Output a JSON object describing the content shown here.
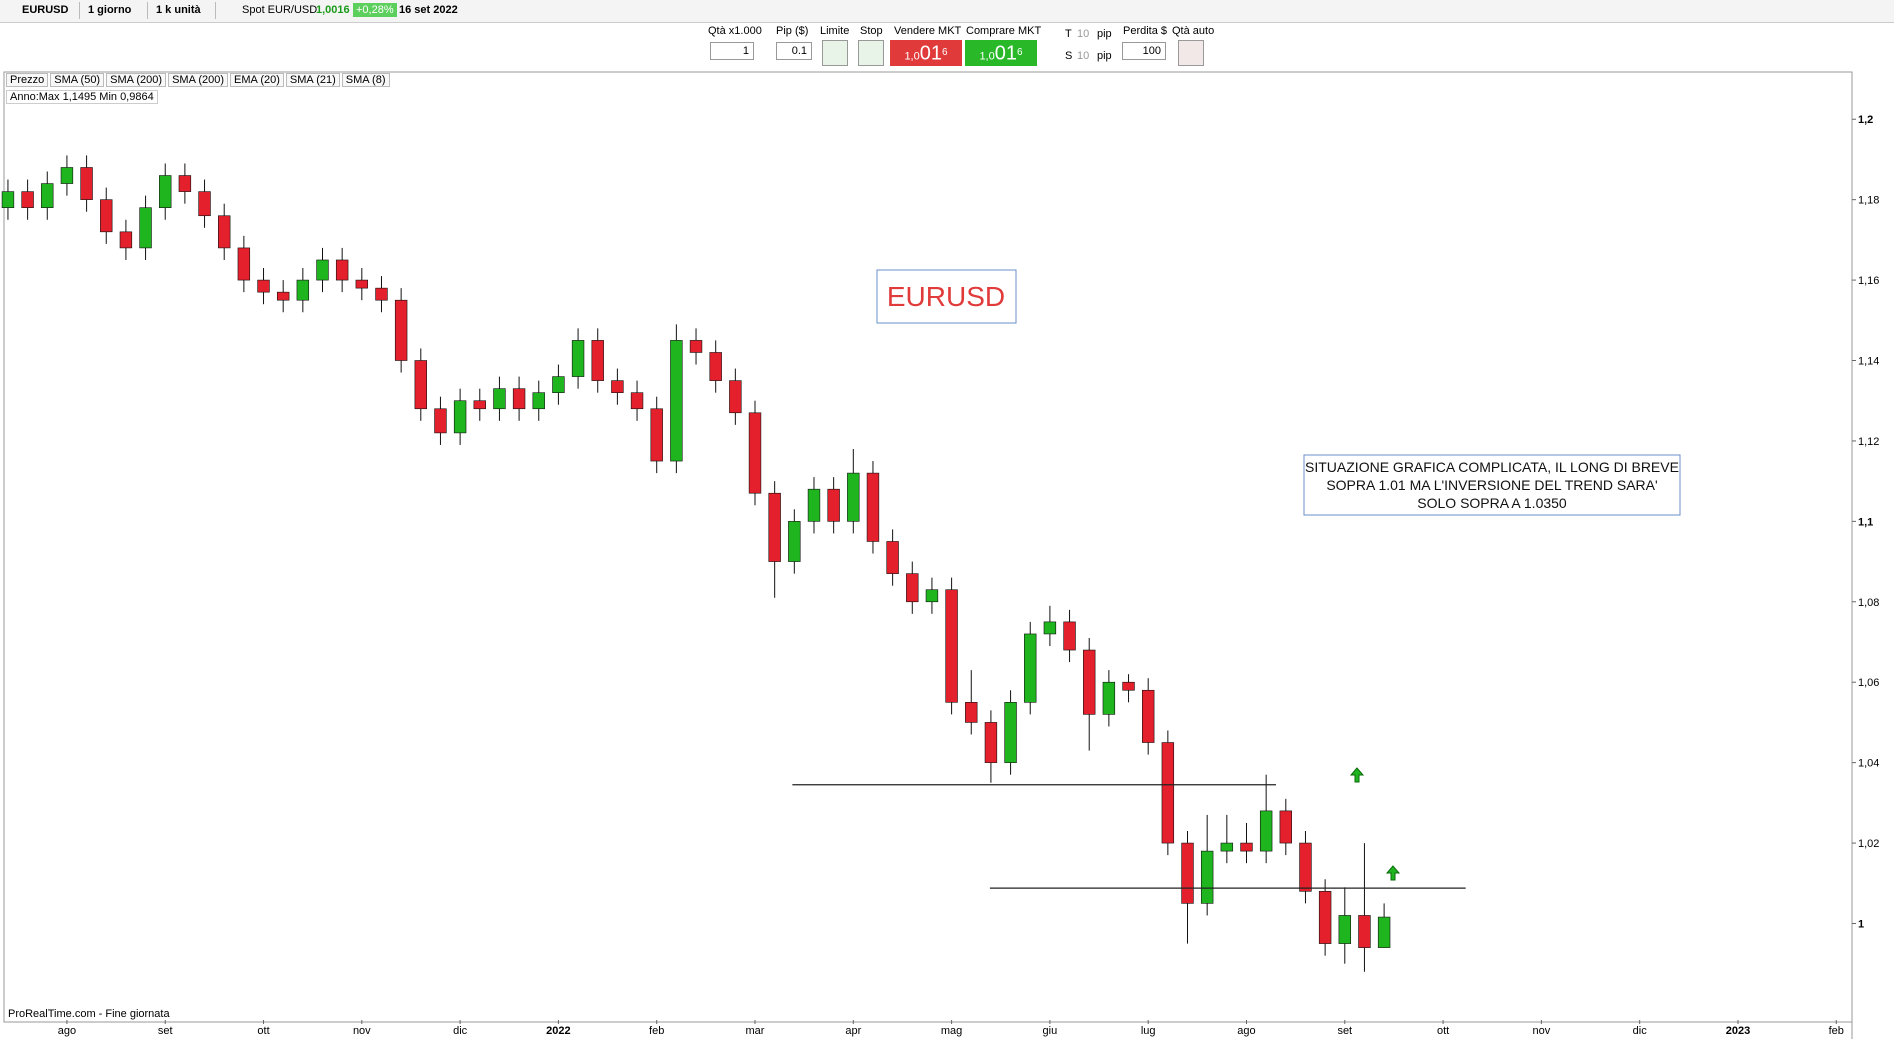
{
  "toolbar": {
    "symbol": "EURUSD",
    "period": "1 giorno",
    "units": "1 k unità",
    "instrument": "Spot EUR/USD",
    "last": "1,0016",
    "change": "+0,28%",
    "date": "16 set 2022"
  },
  "order_panel": {
    "qty_label": "Qtà x1.000",
    "qty": "1",
    "pip_label": "Pip ($)",
    "pip": "0.1",
    "limit_label": "Limite",
    "stop_label": "Stop",
    "sell_label": "Vendere MKT",
    "sell_price": {
      "small": "1,0",
      "big": "01",
      "sup": "6"
    },
    "buy_label": "Comprare MKT",
    "buy_price": {
      "small": "1,0",
      "big": "01",
      "sup": "6"
    },
    "t_label": "T",
    "t_value": "10",
    "t_unit": "pip",
    "s_label": "S",
    "s_value": "10",
    "s_unit": "pip",
    "loss_label": "Perdita $",
    "loss": "100",
    "auto_label": "Qtà auto"
  },
  "indicators": [
    "Prezzo",
    "SMA (50)",
    "SMA (200)",
    "SMA (200)",
    "EMA (20)",
    "SMA (21)",
    "SMA (8)"
  ],
  "range_info": "Anno:Max 1,1495 Min 0,9864",
  "footer": "ProRealTime.com - Fine giornata",
  "chart_data": {
    "type": "candlestick",
    "up_color": "#1fb51f",
    "down_color": "#e3202b",
    "xlim": [
      -0.63,
      18.16
    ],
    "ylim": [
      0.976,
      1.211
    ],
    "xticks": [
      {
        "value": 0,
        "label": "ago"
      },
      {
        "value": 1,
        "label": "set"
      },
      {
        "value": 2,
        "label": "ott"
      },
      {
        "value": 3,
        "label": "nov"
      },
      {
        "value": 4,
        "label": "dic"
      },
      {
        "value": 5,
        "label": "2022"
      },
      {
        "value": 6,
        "label": "feb"
      },
      {
        "value": 7,
        "label": "mar"
      },
      {
        "value": 8,
        "label": "apr"
      },
      {
        "value": 9,
        "label": "mag"
      },
      {
        "value": 10,
        "label": "giu"
      },
      {
        "value": 11,
        "label": "lug"
      },
      {
        "value": 12,
        "label": "ago"
      },
      {
        "value": 13,
        "label": "set"
      },
      {
        "value": 14,
        "label": "ott"
      },
      {
        "value": 15,
        "label": "nov"
      },
      {
        "value": 16,
        "label": "dic"
      },
      {
        "value": 17,
        "label": "2023"
      },
      {
        "value": 18,
        "label": "feb"
      }
    ],
    "yticks": [
      1,
      {
        "value": 1.02,
        "label": "1,02"
      },
      {
        "value": 1.04,
        "label": "1,04"
      },
      {
        "value": 1.06,
        "label": "1,06"
      },
      {
        "value": 1.08,
        "label": "1,08"
      },
      {
        "value": 1.1,
        "label": "1,1"
      },
      {
        "value": 1.12,
        "label": "1,12"
      },
      {
        "value": 1.14,
        "label": "1,14"
      },
      {
        "value": 1.16,
        "label": "1,16"
      },
      {
        "value": 1.18,
        "label": "1,18"
      },
      {
        "value": 1.2,
        "label": "1,2"
      }
    ],
    "x": [
      -0.6,
      -0.4,
      -0.2,
      0,
      0.2,
      0.4,
      0.6,
      0.8,
      1,
      1.2,
      1.4,
      1.6,
      1.8,
      2,
      2.2,
      2.4,
      2.6,
      2.8,
      3,
      3.2,
      3.4,
      3.6,
      3.8,
      4,
      4.2,
      4.4,
      4.6,
      4.8,
      5,
      5.2,
      5.4,
      5.6,
      5.8,
      6,
      6.2,
      6.4,
      6.6,
      6.8,
      7,
      7.2,
      7.4,
      7.6,
      7.8,
      8,
      8.2,
      8.4,
      8.6,
      8.8,
      9,
      9.2,
      9.4,
      9.6,
      9.8,
      10,
      10.2,
      10.4,
      10.6,
      10.8,
      11,
      11.2,
      11.4,
      11.6,
      11.8,
      12,
      12.2,
      12.4,
      12.6,
      12.8,
      13,
      13.2,
      13.4
    ],
    "open": [
      1.178,
      1.182,
      1.178,
      1.184,
      1.188,
      1.18,
      1.172,
      1.168,
      1.178,
      1.186,
      1.182,
      1.176,
      1.168,
      1.16,
      1.157,
      1.155,
      1.16,
      1.165,
      1.16,
      1.158,
      1.155,
      1.14,
      1.128,
      1.122,
      1.13,
      1.128,
      1.133,
      1.128,
      1.132,
      1.136,
      1.145,
      1.135,
      1.132,
      1.128,
      1.115,
      1.145,
      1.142,
      1.135,
      1.127,
      1.107,
      1.09,
      1.1,
      1.108,
      1.1,
      1.112,
      1.095,
      1.087,
      1.08,
      1.083,
      1.055,
      1.05,
      1.04,
      1.055,
      1.072,
      1.075,
      1.068,
      1.052,
      1.06,
      1.058,
      1.045,
      1.02,
      1.005,
      1.018,
      1.02,
      1.018,
      1.028,
      1.02,
      1.008,
      0.995,
      1.002,
      0.994
    ],
    "high": [
      1.185,
      1.185,
      1.187,
      1.191,
      1.191,
      1.183,
      1.175,
      1.181,
      1.189,
      1.189,
      1.185,
      1.179,
      1.171,
      1.163,
      1.16,
      1.163,
      1.168,
      1.168,
      1.163,
      1.161,
      1.158,
      1.143,
      1.131,
      1.133,
      1.133,
      1.136,
      1.136,
      1.135,
      1.139,
      1.148,
      1.148,
      1.138,
      1.135,
      1.131,
      1.149,
      1.148,
      1.145,
      1.138,
      1.13,
      1.11,
      1.103,
      1.111,
      1.111,
      1.118,
      1.115,
      1.098,
      1.09,
      1.086,
      1.086,
      1.063,
      1.053,
      1.058,
      1.075,
      1.079,
      1.078,
      1.071,
      1.063,
      1.062,
      1.061,
      1.048,
      1.023,
      1.027,
      1.027,
      1.025,
      1.037,
      1.031,
      1.023,
      1.011,
      1.009,
      1.02,
      1.005
    ],
    "low": [
      1.175,
      1.175,
      1.175,
      1.181,
      1.177,
      1.169,
      1.165,
      1.165,
      1.175,
      1.179,
      1.173,
      1.165,
      1.157,
      1.154,
      1.152,
      1.152,
      1.157,
      1.157,
      1.155,
      1.152,
      1.137,
      1.125,
      1.119,
      1.119,
      1.125,
      1.125,
      1.125,
      1.125,
      1.129,
      1.133,
      1.132,
      1.129,
      1.125,
      1.112,
      1.112,
      1.139,
      1.132,
      1.124,
      1.104,
      1.081,
      1.087,
      1.097,
      1.097,
      1.097,
      1.092,
      1.084,
      1.077,
      1.077,
      1.052,
      1.047,
      1.035,
      1.037,
      1.052,
      1.069,
      1.065,
      1.043,
      1.049,
      1.055,
      1.042,
      1.017,
      0.995,
      1.002,
      1.015,
      1.015,
      1.015,
      1.017,
      1.005,
      0.992,
      0.99,
      0.988,
      0.995
    ],
    "close": [
      1.182,
      1.178,
      1.184,
      1.188,
      1.18,
      1.172,
      1.168,
      1.178,
      1.186,
      1.182,
      1.176,
      1.168,
      1.16,
      1.157,
      1.155,
      1.16,
      1.165,
      1.16,
      1.158,
      1.155,
      1.14,
      1.128,
      1.122,
      1.13,
      1.128,
      1.133,
      1.128,
      1.132,
      1.136,
      1.145,
      1.135,
      1.132,
      1.128,
      1.115,
      1.145,
      1.142,
      1.135,
      1.127,
      1.107,
      1.09,
      1.1,
      1.108,
      1.1,
      1.112,
      1.095,
      1.087,
      1.08,
      1.083,
      1.055,
      1.05,
      1.04,
      1.055,
      1.072,
      1.075,
      1.068,
      1.052,
      1.06,
      1.058,
      1.045,
      1.02,
      1.005,
      1.018,
      1.02,
      1.018,
      1.028,
      1.02,
      1.008,
      0.995,
      1.002,
      0.994,
      1.0016
    ],
    "hlines": [
      {
        "value": 1.0345,
        "x": [
          7.38,
          12.3
        ]
      },
      {
        "value": 1.0088,
        "x": [
          9.39,
          14.23
        ]
      }
    ],
    "title_box": "EURUSD",
    "comment": [
      "SITUAZIONE GRAFICA COMPLICATA, IL LONG DI BREVE",
      "SOPRA 1.01 MA L'INVERSIONE DEL TREND SARA'",
      "SOLO SOPRA A 1.0350"
    ]
  }
}
